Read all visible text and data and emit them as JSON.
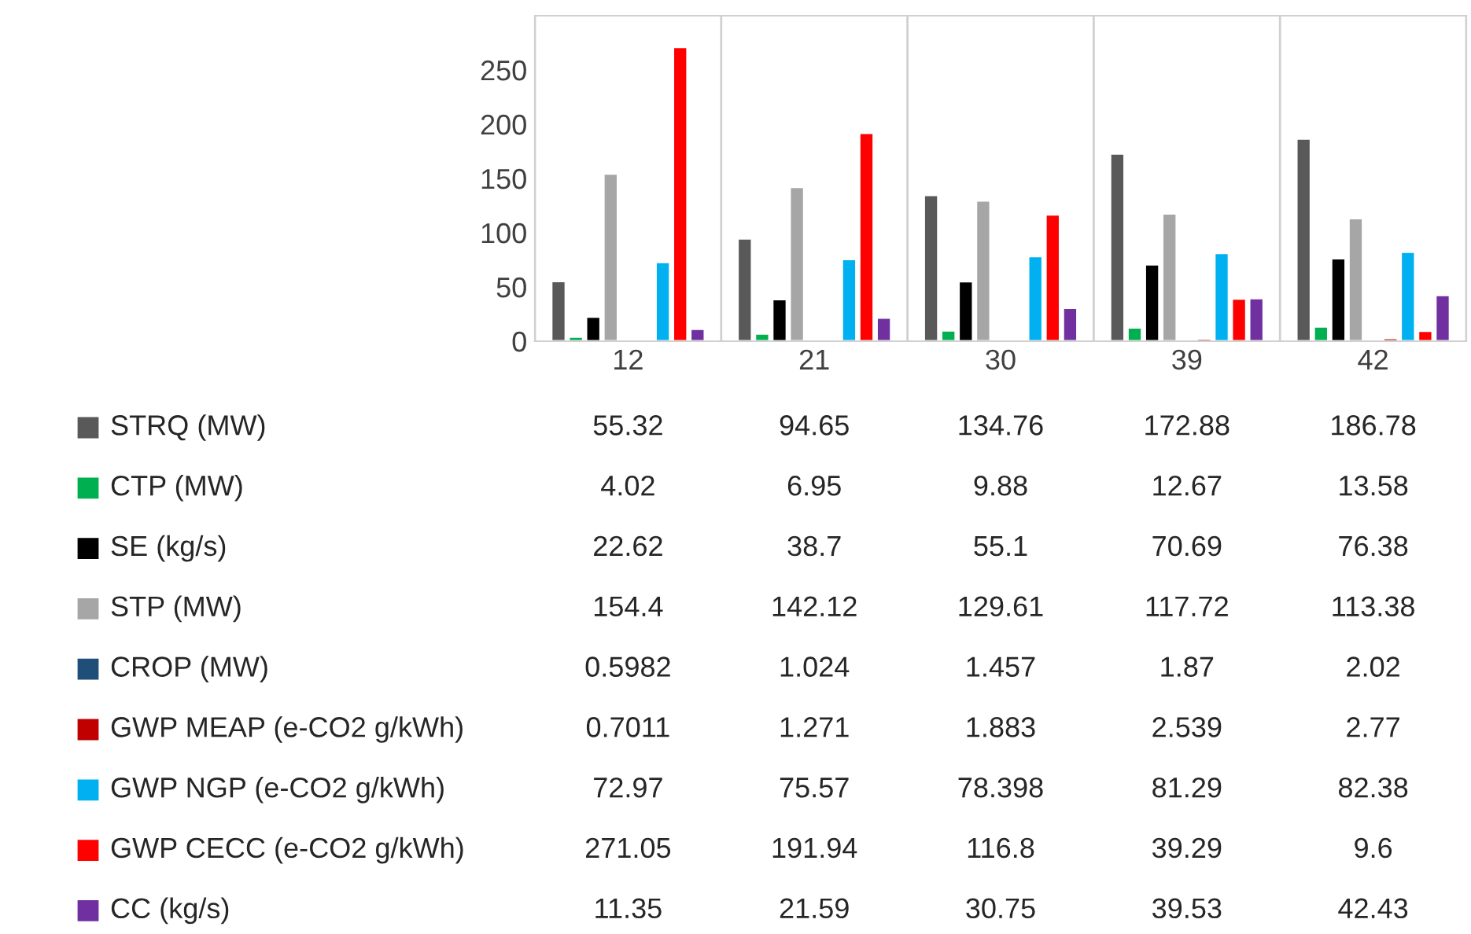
{
  "chart_data": {
    "type": "bar",
    "categories": [
      "12",
      "21",
      "30",
      "39",
      "42"
    ],
    "series": [
      {
        "name": "STRQ (MW)",
        "color": "#595959",
        "values": [
          55.32,
          94.65,
          134.76,
          172.88,
          186.78
        ]
      },
      {
        "name": "CTP (MW)",
        "color": "#00b050",
        "values": [
          4.02,
          6.95,
          9.88,
          12.67,
          13.58
        ]
      },
      {
        "name": "SE (kg/s)",
        "color": "#000000",
        "values": [
          22.62,
          38.7,
          55.1,
          70.69,
          76.38
        ]
      },
      {
        "name": "STP (MW)",
        "color": "#a6a6a6",
        "values": [
          154.4,
          142.12,
          129.61,
          117.72,
          113.38
        ]
      },
      {
        "name": "CROP (MW)",
        "color": "#1f4e79",
        "values": [
          0.5982,
          1.024,
          1.457,
          1.87,
          2.02
        ]
      },
      {
        "name": "GWP MEAP (e-CO2 g/kWh)",
        "color": "#c00000",
        "values": [
          0.7011,
          1.271,
          1.883,
          2.539,
          2.77
        ]
      },
      {
        "name": "GWP NGP (e-CO2 g/kWh)",
        "color": "#00b0f0",
        "values": [
          72.97,
          75.57,
          78.398,
          81.29,
          82.38
        ]
      },
      {
        "name": "GWP CECC (e-CO2 g/kWh)",
        "color": "#ff0000",
        "values": [
          271.05,
          191.94,
          116.8,
          39.29,
          9.6
        ]
      },
      {
        "name": "CC (kg/s)",
        "color": "#7030a0",
        "values": [
          11.35,
          21.59,
          30.75,
          39.53,
          42.43
        ]
      }
    ],
    "ylim": [
      0,
      300
    ],
    "yticks": [
      0,
      50,
      100,
      150,
      200,
      250
    ],
    "grid": "x",
    "data_labels": true,
    "legend": "bottom left"
  }
}
